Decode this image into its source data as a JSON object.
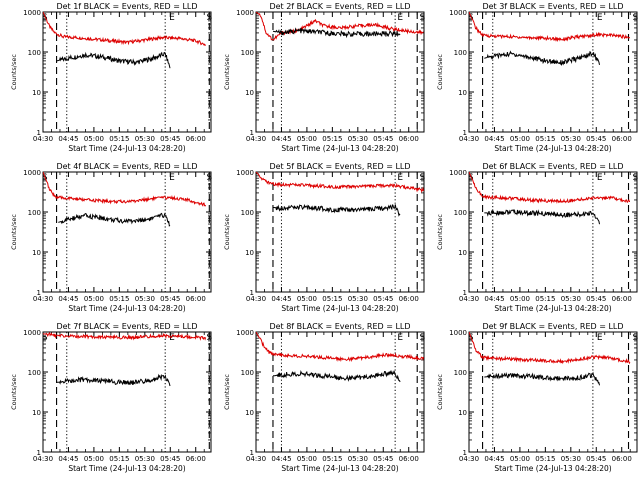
{
  "figure": {
    "background": "#ffffff",
    "colors": {
      "events": "#000000",
      "lld": "#dd0000",
      "axes": "#000000"
    }
  },
  "chart_data": [
    {
      "type": "line",
      "title": "Det 1f BLACK = Events, RED = LLD",
      "xlabel": "Start Time (24-Jul-13 04:28:20)",
      "ylabel": "Counts/sec",
      "xlim": [
        "04:30",
        "06:09"
      ],
      "ylim": [
        1,
        1000
      ],
      "y_scale": "log",
      "x_tick_labels": [
        "04:30",
        "04:45",
        "05:00",
        "05:15",
        "05:30",
        "05:45",
        "06:00"
      ],
      "y_tick_labels": [
        "1",
        "10",
        "100",
        "1000"
      ],
      "markers": [
        {
          "label": "S",
          "time": "04:31"
        },
        {
          "label": "E",
          "time": "05:46"
        },
        {
          "label": "S",
          "time": "06:08"
        }
      ],
      "vlines": [
        {
          "time": "04:38",
          "style": "dashed"
        },
        {
          "time": "04:44",
          "style": "dotted"
        },
        {
          "time": "05:42",
          "style": "dotted"
        },
        {
          "time": "06:08",
          "style": "dashed"
        }
      ],
      "series": [
        {
          "name": "LLD",
          "x": [
            "04:30",
            "04:34",
            "04:37",
            "04:42",
            "04:50",
            "05:00",
            "05:10",
            "05:20",
            "05:30",
            "05:40",
            "05:50",
            "06:00",
            "06:06"
          ],
          "values": [
            1000,
            420,
            300,
            240,
            230,
            210,
            190,
            175,
            200,
            230,
            220,
            190,
            150
          ]
        },
        {
          "name": "Events",
          "x": [
            "04:38",
            "04:45",
            "04:55",
            "05:05",
            "05:15",
            "05:25",
            "05:35",
            "05:42",
            "05:45"
          ],
          "values": [
            60,
            70,
            85,
            75,
            60,
            55,
            70,
            90,
            40
          ]
        }
      ]
    },
    {
      "type": "line",
      "title": "Det 2f BLACK = Events, RED = LLD",
      "xlabel": "Start Time (24-Jul-13 04:28:20)",
      "ylabel": "Counts/sec",
      "xlim": [
        "04:30",
        "06:09"
      ],
      "ylim": [
        1,
        1000
      ],
      "y_scale": "log",
      "x_tick_labels": [
        "04:30",
        "04:45",
        "05:00",
        "05:15",
        "05:30",
        "05:45",
        "06:00"
      ],
      "y_tick_labels": [
        "1",
        "10",
        "100",
        "1000"
      ],
      "markers": [
        {
          "label": "E",
          "time": "05:55"
        },
        {
          "label": "S",
          "time": "06:08"
        }
      ],
      "vlines": [
        {
          "time": "04:40",
          "style": "dashed"
        },
        {
          "time": "04:45",
          "style": "dotted"
        },
        {
          "time": "05:52",
          "style": "dotted"
        },
        {
          "time": "06:05",
          "style": "dashed"
        }
      ],
      "series": [
        {
          "name": "LLD",
          "x": [
            "04:30",
            "04:33",
            "04:36",
            "04:40",
            "04:45",
            "04:55",
            "05:05",
            "05:10",
            "05:20",
            "05:30",
            "05:40",
            "05:50",
            "06:00",
            "06:09"
          ],
          "values": [
            1000,
            800,
            300,
            200,
            300,
            340,
            600,
            450,
            400,
            450,
            480,
            380,
            330,
            300
          ]
        },
        {
          "name": "Events",
          "x": [
            "04:40",
            "04:45",
            "04:55",
            "05:05",
            "05:15",
            "05:25",
            "05:35",
            "05:45",
            "05:55"
          ],
          "values": [
            330,
            300,
            340,
            320,
            290,
            280,
            280,
            290,
            290
          ]
        }
      ]
    },
    {
      "type": "line",
      "title": "Det 3f BLACK = Events, RED = LLD",
      "xlabel": "Start Time (24-Jul-13 04:28:20)",
      "ylabel": "Counts/sec",
      "xlim": [
        "04:30",
        "06:09"
      ],
      "ylim": [
        1,
        1000
      ],
      "y_scale": "log",
      "x_tick_labels": [
        "04:30",
        "04:45",
        "05:00",
        "05:15",
        "05:30",
        "05:45",
        "06:00"
      ],
      "y_tick_labels": [
        "1",
        "10",
        "100",
        "1000"
      ],
      "markers": [
        {
          "label": "S",
          "time": "04:31"
        },
        {
          "label": "E",
          "time": "05:47"
        },
        {
          "label": "S",
          "time": "06:08"
        }
      ],
      "vlines": [
        {
          "time": "04:38",
          "style": "dashed"
        },
        {
          "time": "04:44",
          "style": "dotted"
        },
        {
          "time": "05:43",
          "style": "dotted"
        },
        {
          "time": "06:04",
          "style": "dashed"
        }
      ],
      "series": [
        {
          "name": "LLD",
          "x": [
            "04:30",
            "04:34",
            "04:38",
            "04:45",
            "04:55",
            "05:05",
            "05:15",
            "05:25",
            "05:35",
            "05:45",
            "05:55",
            "06:05"
          ],
          "values": [
            1000,
            400,
            260,
            250,
            240,
            230,
            220,
            210,
            240,
            270,
            260,
            230
          ]
        },
        {
          "name": "Events",
          "x": [
            "04:39",
            "04:45",
            "04:55",
            "05:05",
            "05:15",
            "05:25",
            "05:35",
            "05:43",
            "05:47"
          ],
          "values": [
            70,
            80,
            90,
            75,
            60,
            55,
            70,
            95,
            50
          ]
        }
      ]
    },
    {
      "type": "line",
      "title": "Det 4f BLACK = Events, RED = LLD",
      "xlabel": "Start Time (24-Jul-13 04:28:20)",
      "ylabel": "Counts/sec",
      "xlim": [
        "04:30",
        "06:09"
      ],
      "ylim": [
        1,
        1000
      ],
      "y_scale": "log",
      "x_tick_labels": [
        "04:30",
        "04:45",
        "05:00",
        "05:15",
        "05:30",
        "05:45",
        "06:00"
      ],
      "y_tick_labels": [
        "1",
        "10",
        "100",
        "1000"
      ],
      "markers": [
        {
          "label": "S",
          "time": "04:31"
        },
        {
          "label": "E",
          "time": "05:46"
        },
        {
          "label": "S",
          "time": "06:08"
        }
      ],
      "vlines": [
        {
          "time": "04:38",
          "style": "dashed"
        },
        {
          "time": "04:44",
          "style": "dotted"
        },
        {
          "time": "05:42",
          "style": "dotted"
        },
        {
          "time": "06:08",
          "style": "dashed"
        }
      ],
      "series": [
        {
          "name": "LLD",
          "x": [
            "04:30",
            "04:34",
            "04:38",
            "04:45",
            "04:55",
            "05:05",
            "05:15",
            "05:25",
            "05:35",
            "05:45",
            "05:55",
            "06:06"
          ],
          "values": [
            1000,
            350,
            230,
            220,
            200,
            190,
            180,
            190,
            220,
            230,
            200,
            150
          ]
        },
        {
          "name": "Events",
          "x": [
            "04:39",
            "04:45",
            "04:55",
            "05:05",
            "05:15",
            "05:25",
            "05:35",
            "05:42",
            "05:45"
          ],
          "values": [
            55,
            65,
            80,
            70,
            60,
            60,
            70,
            85,
            45
          ]
        }
      ]
    },
    {
      "type": "line",
      "title": "Det 5f BLACK = Events, RED = LLD",
      "xlabel": "Start Time (24-Jul-13 04:28:20)",
      "ylabel": "Counts/sec",
      "xlim": [
        "04:30",
        "06:09"
      ],
      "ylim": [
        1,
        1000
      ],
      "y_scale": "log",
      "x_tick_labels": [
        "04:30",
        "04:45",
        "05:00",
        "05:15",
        "05:30",
        "05:45",
        "06:00"
      ],
      "y_tick_labels": [
        "1",
        "10",
        "100",
        "1000"
      ],
      "markers": [
        {
          "label": "E",
          "time": "05:55"
        },
        {
          "label": "S",
          "time": "06:08"
        }
      ],
      "vlines": [
        {
          "time": "04:40",
          "style": "dashed"
        },
        {
          "time": "04:45",
          "style": "dotted"
        },
        {
          "time": "05:52",
          "style": "dotted"
        },
        {
          "time": "06:05",
          "style": "dashed"
        }
      ],
      "series": [
        {
          "name": "LLD",
          "x": [
            "04:30",
            "04:35",
            "04:40",
            "04:50",
            "05:00",
            "05:10",
            "05:20",
            "05:30",
            "05:40",
            "05:50",
            "06:00",
            "06:09"
          ],
          "values": [
            1000,
            600,
            500,
            480,
            460,
            440,
            420,
            430,
            450,
            470,
            400,
            350
          ]
        },
        {
          "name": "Events",
          "x": [
            "04:40",
            "04:45",
            "04:55",
            "05:05",
            "05:15",
            "05:25",
            "05:35",
            "05:45",
            "05:52",
            "05:55"
          ],
          "values": [
            130,
            125,
            130,
            125,
            115,
            110,
            115,
            125,
            140,
            80
          ]
        }
      ]
    },
    {
      "type": "line",
      "title": "Det 6f BLACK = Events, RED = LLD",
      "xlabel": "Start Time (24-Jul-13 04:28:20)",
      "ylabel": "Counts/sec",
      "xlim": [
        "04:30",
        "06:09"
      ],
      "ylim": [
        1,
        1000
      ],
      "y_scale": "log",
      "x_tick_labels": [
        "04:30",
        "04:45",
        "05:00",
        "05:15",
        "05:30",
        "05:45",
        "06:00"
      ],
      "y_tick_labels": [
        "1",
        "10",
        "100",
        "1000"
      ],
      "markers": [
        {
          "label": "S",
          "time": "04:31"
        },
        {
          "label": "E",
          "time": "05:47"
        },
        {
          "label": "S",
          "time": "06:08"
        }
      ],
      "vlines": [
        {
          "time": "04:38",
          "style": "dashed"
        },
        {
          "time": "04:44",
          "style": "dotted"
        },
        {
          "time": "05:43",
          "style": "dotted"
        },
        {
          "time": "06:04",
          "style": "dashed"
        }
      ],
      "series": [
        {
          "name": "LLD",
          "x": [
            "04:30",
            "04:34",
            "04:38",
            "04:45",
            "04:55",
            "05:05",
            "05:15",
            "05:25",
            "05:35",
            "05:45",
            "05:55",
            "06:05"
          ],
          "values": [
            1000,
            400,
            240,
            230,
            220,
            200,
            190,
            185,
            200,
            230,
            220,
            180
          ]
        },
        {
          "name": "Events",
          "x": [
            "04:39",
            "04:45",
            "04:55",
            "05:05",
            "05:15",
            "05:25",
            "05:35",
            "05:43",
            "05:47"
          ],
          "values": [
            95,
            95,
            100,
            95,
            90,
            85,
            85,
            95,
            55
          ]
        }
      ]
    },
    {
      "type": "line",
      "title": "Det 7f BLACK = Events, RED = LLD",
      "xlabel": "Start Time (24-Jul-13 04:28:20)",
      "ylabel": "Counts/sec",
      "xlim": [
        "04:30",
        "06:09"
      ],
      "ylim": [
        1,
        1000
      ],
      "y_scale": "log",
      "x_tick_labels": [
        "04:30",
        "04:45",
        "05:00",
        "05:15",
        "05:30",
        "05:45",
        "06:00"
      ],
      "y_tick_labels": [
        "1",
        "10",
        "100",
        "1000"
      ],
      "markers": [
        {
          "label": "S",
          "time": "04:31"
        },
        {
          "label": "E",
          "time": "05:46"
        },
        {
          "label": "S",
          "time": "06:08"
        }
      ],
      "vlines": [
        {
          "time": "04:38",
          "style": "dashed"
        },
        {
          "time": "04:44",
          "style": "dotted"
        },
        {
          "time": "05:42",
          "style": "dotted"
        },
        {
          "time": "06:08",
          "style": "dashed"
        }
      ],
      "series": [
        {
          "name": "LLD",
          "x": [
            "04:30",
            "04:40",
            "04:50",
            "05:00",
            "05:10",
            "05:20",
            "05:30",
            "05:40",
            "05:50",
            "06:00",
            "06:06"
          ],
          "values": [
            900,
            800,
            780,
            760,
            740,
            720,
            760,
            800,
            780,
            740,
            700
          ]
        },
        {
          "name": "Events",
          "x": [
            "04:38",
            "04:45",
            "04:55",
            "05:05",
            "05:15",
            "05:25",
            "05:35",
            "05:42",
            "05:45"
          ],
          "values": [
            55,
            60,
            65,
            60,
            55,
            55,
            65,
            80,
            45
          ]
        }
      ]
    },
    {
      "type": "line",
      "title": "Det 8f BLACK = Events, RED = LLD",
      "xlabel": "Start Time (24-Jul-13 04:28:20)",
      "ylabel": "Counts/sec",
      "xlim": [
        "04:30",
        "06:09"
      ],
      "ylim": [
        1,
        1000
      ],
      "y_scale": "log",
      "x_tick_labels": [
        "04:30",
        "04:45",
        "05:00",
        "05:15",
        "05:30",
        "05:45",
        "06:00"
      ],
      "y_tick_labels": [
        "1",
        "10",
        "100",
        "1000"
      ],
      "markers": [
        {
          "label": "E",
          "time": "05:55"
        },
        {
          "label": "S",
          "time": "06:08"
        }
      ],
      "vlines": [
        {
          "time": "04:40",
          "style": "dashed"
        },
        {
          "time": "04:45",
          "style": "dotted"
        },
        {
          "time": "05:52",
          "style": "dotted"
        },
        {
          "time": "06:05",
          "style": "dashed"
        }
      ],
      "series": [
        {
          "name": "LLD",
          "x": [
            "04:30",
            "04:34",
            "04:38",
            "04:45",
            "04:55",
            "05:05",
            "05:15",
            "05:25",
            "05:35",
            "05:45",
            "05:55",
            "06:09"
          ],
          "values": [
            1000,
            500,
            300,
            270,
            250,
            240,
            220,
            210,
            230,
            270,
            250,
            220
          ]
        },
        {
          "name": "Events",
          "x": [
            "04:40",
            "04:45",
            "04:55",
            "05:05",
            "05:15",
            "05:25",
            "05:35",
            "05:45",
            "05:52",
            "05:55"
          ],
          "values": [
            80,
            85,
            90,
            85,
            75,
            70,
            75,
            90,
            95,
            55
          ]
        }
      ]
    },
    {
      "type": "line",
      "title": "Det 9f BLACK = Events, RED = LLD",
      "xlabel": "Start Time (24-Jul-13 04:28:20)",
      "ylabel": "Counts/sec",
      "xlim": [
        "04:30",
        "06:09"
      ],
      "ylim": [
        1,
        1000
      ],
      "y_scale": "log",
      "x_tick_labels": [
        "04:30",
        "04:45",
        "05:00",
        "05:15",
        "05:30",
        "05:45",
        "06:00"
      ],
      "y_tick_labels": [
        "1",
        "10",
        "100",
        "1000"
      ],
      "markers": [
        {
          "label": "S",
          "time": "04:31"
        },
        {
          "label": "E",
          "time": "05:47"
        },
        {
          "label": "S",
          "time": "06:08"
        }
      ],
      "vlines": [
        {
          "time": "04:38",
          "style": "dashed"
        },
        {
          "time": "04:44",
          "style": "dotted"
        },
        {
          "time": "05:43",
          "style": "dotted"
        },
        {
          "time": "06:04",
          "style": "dashed"
        }
      ],
      "series": [
        {
          "name": "LLD",
          "x": [
            "04:30",
            "04:34",
            "04:38",
            "04:45",
            "04:55",
            "05:05",
            "05:15",
            "05:25",
            "05:35",
            "05:45",
            "05:55",
            "06:05"
          ],
          "values": [
            1000,
            350,
            230,
            220,
            210,
            200,
            190,
            185,
            210,
            240,
            220,
            180
          ]
        },
        {
          "name": "Events",
          "x": [
            "04:39",
            "04:45",
            "04:55",
            "05:05",
            "05:15",
            "05:25",
            "05:35",
            "05:43",
            "05:47"
          ],
          "values": [
            75,
            78,
            82,
            78,
            72,
            70,
            72,
            85,
            50
          ]
        }
      ]
    }
  ]
}
